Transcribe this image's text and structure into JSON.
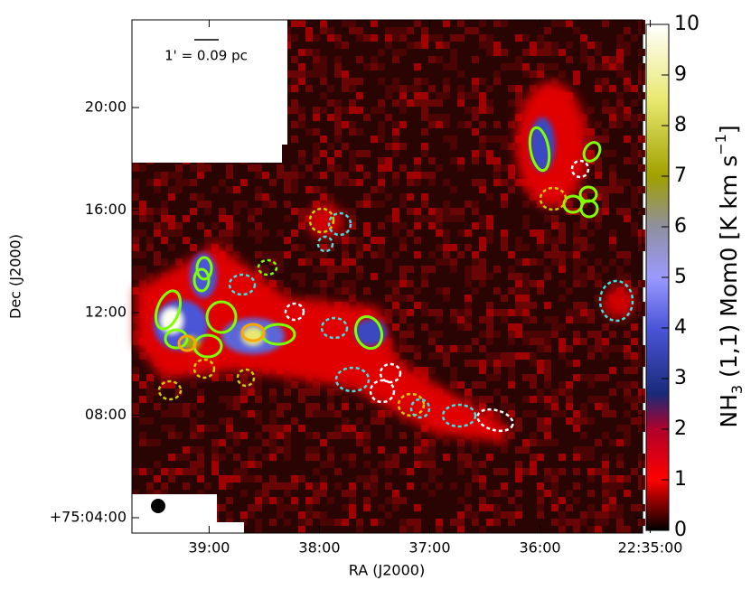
{
  "chart_data": {
    "type": "image",
    "x_label": "RA (J2000)",
    "y_label": "Dec (J2000)",
    "xlim": [
      39.7,
      35.07
    ],
    "xticks": [
      {
        "value": 39,
        "label": "39:00"
      },
      {
        "value": 38,
        "label": "38:00"
      },
      {
        "value": 37,
        "label": "37:00"
      },
      {
        "value": 36,
        "label": "36:00"
      },
      {
        "value": 35,
        "label": "22:35:00"
      }
    ],
    "ylim": [
      3.4,
      23.42
    ],
    "yticks": [
      {
        "value": 4,
        "label": "+75:04:00"
      },
      {
        "value": 8,
        "label": "08:00"
      },
      {
        "value": 12,
        "label": "12:00"
      },
      {
        "value": 16,
        "label": "16:00"
      },
      {
        "value": 20,
        "label": "20:00"
      }
    ],
    "scale_bar": "1' = 0.09 pc",
    "colorbar": {
      "label_parts": [
        "NH",
        "3",
        " (1,1) Mom0 [K km s",
        "−1",
        "]"
      ],
      "clim": [
        0,
        10
      ],
      "ticks": [
        0,
        1,
        2,
        3,
        4,
        5,
        6,
        7,
        8,
        9,
        10
      ]
    }
  }
}
